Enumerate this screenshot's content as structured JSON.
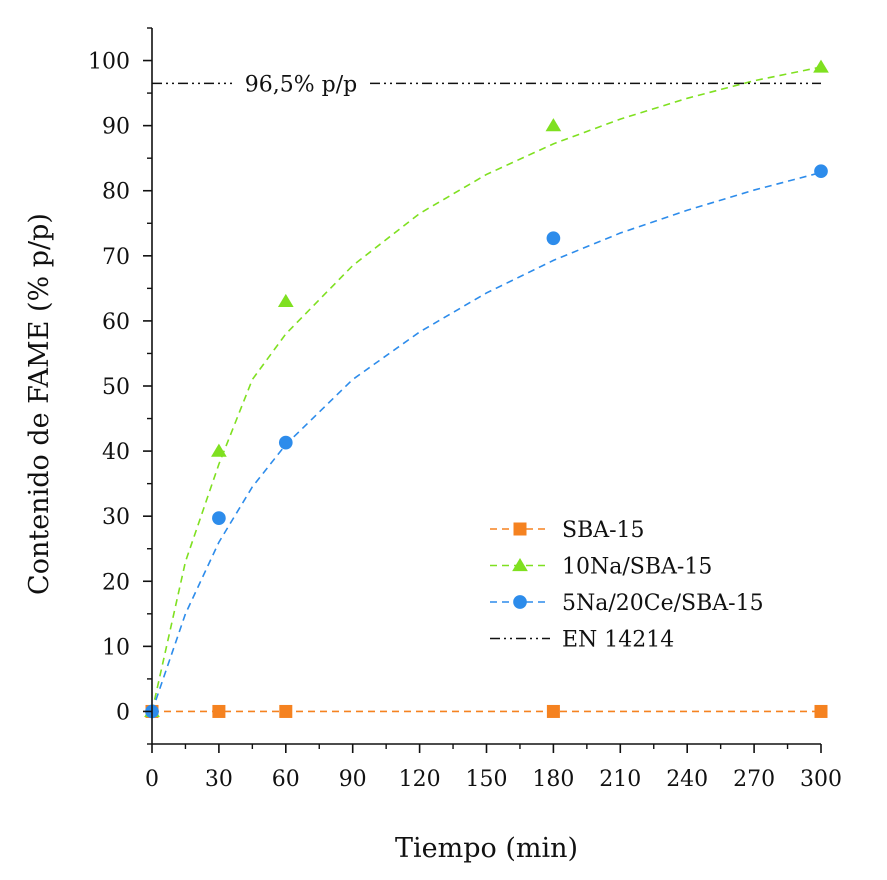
{
  "chart_data": {
    "type": "scatter",
    "xlabel": "Tiempo (min)",
    "ylabel": "Contenido de FAME (% p/p)",
    "xlim": [
      0,
      300
    ],
    "ylim": [
      -5,
      105
    ],
    "xticks": [
      0,
      30,
      60,
      90,
      120,
      150,
      180,
      210,
      240,
      270,
      300
    ],
    "yticks": [
      0,
      10,
      20,
      30,
      40,
      50,
      60,
      70,
      80,
      90,
      100
    ],
    "legend_position": "bottom-right",
    "grid": false,
    "series": [
      {
        "name": "SBA-15",
        "marker": "square",
        "color": "#F58220",
        "x": [
          0,
          30,
          60,
          180,
          300
        ],
        "y": [
          0,
          0,
          0,
          0,
          0
        ],
        "fit": {
          "style": "dashed",
          "x": [
            0,
            300
          ],
          "y": [
            0,
            0
          ]
        }
      },
      {
        "name": "10Na/SBA-15",
        "marker": "triangle",
        "color": "#7FE020",
        "x": [
          0,
          30,
          60,
          180,
          300
        ],
        "y": [
          0,
          40,
          63,
          90,
          99
        ],
        "fit": {
          "style": "dashed",
          "x": [
            0,
            15,
            30,
            45,
            60,
            90,
            120,
            150,
            180,
            210,
            240,
            270,
            300
          ],
          "y": [
            0,
            23,
            38,
            51,
            58,
            68.5,
            76.5,
            82.5,
            87.2,
            91,
            94.2,
            96.9,
            99
          ]
        }
      },
      {
        "name": "5Na/20Ce/SBA-15",
        "marker": "circle",
        "color": "#2D8CEB",
        "x": [
          0,
          30,
          60,
          180,
          300
        ],
        "y": [
          0,
          29.7,
          41.3,
          72.7,
          83
        ],
        "fit": {
          "style": "dashed",
          "x": [
            0,
            15,
            30,
            45,
            60,
            90,
            120,
            150,
            180,
            210,
            240,
            270,
            300
          ],
          "y": [
            0,
            15,
            26,
            34.5,
            41,
            51,
            58.3,
            64.3,
            69.3,
            73.5,
            77,
            80.1,
            82.8
          ]
        }
      }
    ],
    "reference_line": {
      "name": "EN 14214",
      "y": 96.5,
      "label": "96,5% p/p",
      "style": "dash-dot-dot",
      "color": "#111111"
    }
  }
}
